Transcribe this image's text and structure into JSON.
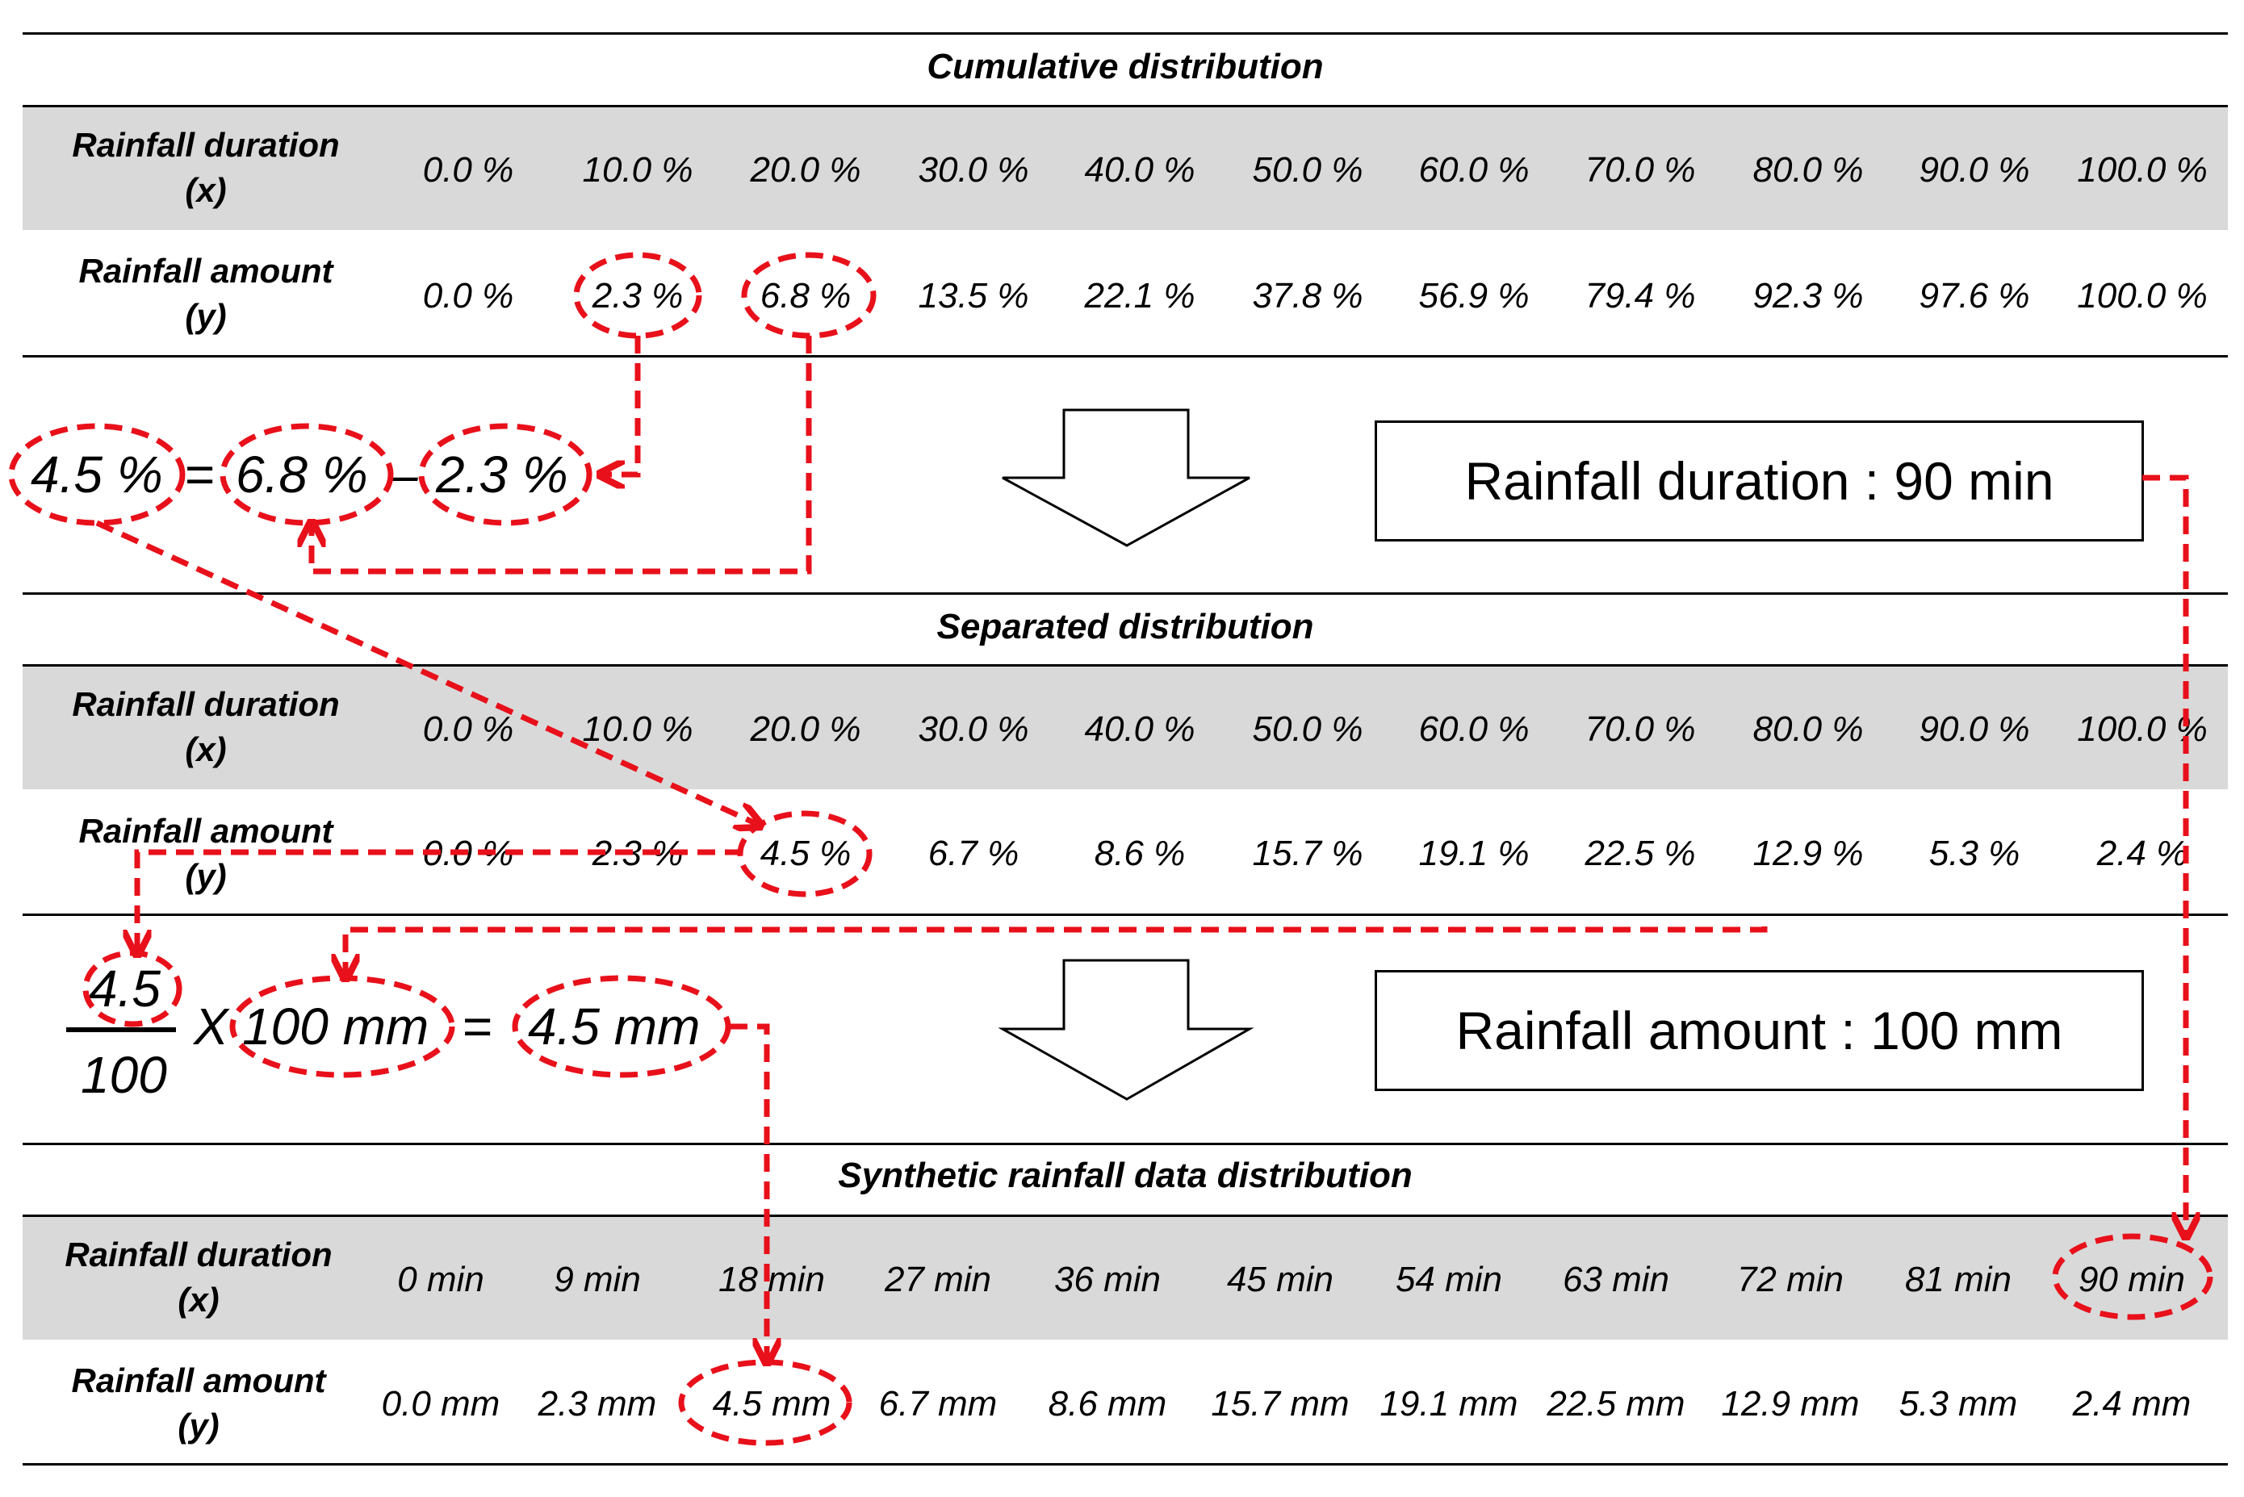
{
  "colors": {
    "accent": "#e8101a",
    "band": "#d9d9d9"
  },
  "sections": {
    "cumulative": {
      "title": "Cumulative distribution",
      "duration_label": [
        "Rainfall duration",
        "(x)"
      ],
      "amount_label": [
        "Rainfall amount",
        "(y)"
      ],
      "duration": [
        "0.0 %",
        "10.0 %",
        "20.0 %",
        "30.0 %",
        "40.0 %",
        "50.0 %",
        "60.0 %",
        "70.0 %",
        "80.0 %",
        "90.0 %",
        "100.0 %"
      ],
      "amount": [
        "0.0 %",
        "2.3 %",
        "6.8 %",
        "13.5 %",
        "22.1 %",
        "37.8 %",
        "56.9 %",
        "79.4 %",
        "92.3 %",
        "97.6 %",
        "100.0 %"
      ]
    },
    "separated": {
      "title": "Separated distribution",
      "duration_label": [
        "Rainfall duration",
        "(x)"
      ],
      "amount_label": [
        "Rainfall amount",
        "(y)"
      ],
      "duration": [
        "0.0 %",
        "10.0 %",
        "20.0 %",
        "30.0 %",
        "40.0 %",
        "50.0 %",
        "60.0 %",
        "70.0 %",
        "80.0 %",
        "90.0 %",
        "100.0 %"
      ],
      "amount": [
        "0.0 %",
        "2.3 %",
        "4.5 %",
        "6.7 %",
        "8.6 %",
        "15.7 %",
        "19.1 %",
        "22.5 %",
        "12.9 %",
        "5.3 %",
        "2.4 %"
      ]
    },
    "synthetic": {
      "title": "Synthetic rainfall data distribution",
      "duration_label": [
        "Rainfall duration",
        "(x)"
      ],
      "amount_label": [
        "Rainfall amount",
        "(y)"
      ],
      "duration": [
        "0 min",
        "9 min",
        "18 min",
        "27 min",
        "36 min",
        "45 min",
        "54 min",
        "63 min",
        "72 min",
        "81 min",
        "90 min"
      ],
      "amount": [
        "0.0 mm",
        "2.3 mm",
        "4.5 mm",
        "6.7 mm",
        "8.6 mm",
        "15.7 mm",
        "19.1 mm",
        "22.5 mm",
        "12.9 mm",
        "5.3 mm",
        "2.4 mm"
      ]
    }
  },
  "equation1": {
    "result": "4.5 %",
    "equals": "=",
    "minuend": "6.8 %",
    "minus": "–",
    "subtrahend": "2.3 %"
  },
  "equation2": {
    "numerator": "4.5",
    "denominator": "100",
    "times": "X",
    "amount": "100 mm",
    "equals": "=",
    "result": "4.5 mm"
  },
  "boxes": {
    "duration": "Rainfall duration : 90 min",
    "amount": "Rainfall amount : 100 mm"
  }
}
